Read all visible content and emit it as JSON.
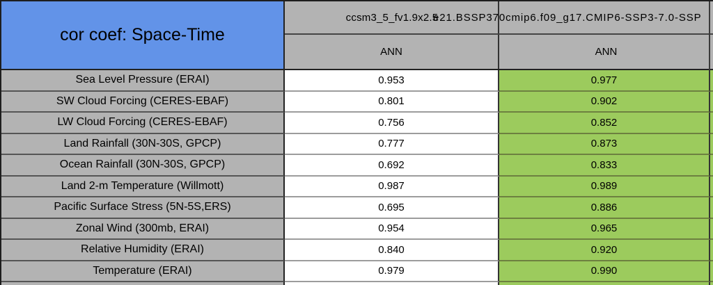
{
  "chart_data": {
    "type": "table",
    "title": "cor coef: Space-Time",
    "columns": [
      {
        "model": "ccsm3_5_fv1.9x2.5",
        "season": "ANN"
      },
      {
        "model": "e21.BSSP370cmip6.f09_g17.CMIP6-SSP3-7.0-SSP",
        "season": "ANN"
      }
    ],
    "row_labels": [
      "Sea Level Pressure (ERAI)",
      "SW Cloud Forcing (CERES-EBAF)",
      "LW Cloud Forcing (CERES-EBAF)",
      "Land Rainfall (30N-30S, GPCP)",
      "Ocean Rainfall (30N-30S, GPCP)",
      "Land 2-m Temperature (Willmott)",
      "Pacific Surface Stress (5N-5S,ERS)",
      "Zonal Wind (300mb, ERAI)",
      "Relative Humidity (ERAI)",
      "Temperature (ERAI)"
    ],
    "series": [
      {
        "name": "ccsm3_5_fv1.9x2.5",
        "values": [
          "0.953",
          "0.801",
          "0.756",
          "0.777",
          "0.692",
          "0.987",
          "0.695",
          "0.954",
          "0.840",
          "0.979"
        ]
      },
      {
        "name": "e21.BSSP370cmip6.f09_g17.CMIP6-SSP3-7.0-SSP",
        "values": [
          "0.977",
          "0.902",
          "0.852",
          "0.873",
          "0.833",
          "0.989",
          "0.886",
          "0.965",
          "0.920",
          "0.990"
        ]
      }
    ],
    "layout_hints": "second model column cells shaded green; first model column cells white; row labels gray; table clipped at right and bottom edges"
  },
  "colors": {
    "header_blue": "#6293e8",
    "cell_gray": "#b3b3b3",
    "best_green": "#9ccb5d",
    "cell_white": "#ffffff"
  }
}
